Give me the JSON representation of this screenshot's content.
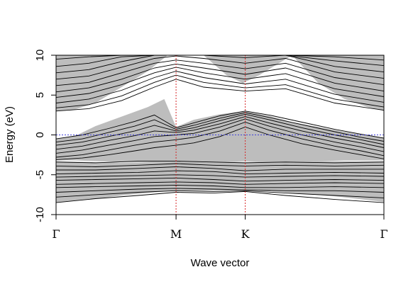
{
  "chart_data": {
    "type": "line",
    "title": "",
    "xlabel": "Wave vector",
    "ylabel": "Energy (eV)",
    "ylim": [
      -10,
      10
    ],
    "yticks": [
      10,
      5,
      0,
      -5,
      -10
    ],
    "ytick_labels": [
      "10",
      "5",
      "0",
      "-5",
      "-10"
    ],
    "kpoints": [
      {
        "label": "Γ",
        "k": 0.0
      },
      {
        "label": "M",
        "k": 0.366
      },
      {
        "label": "K",
        "k": 0.577
      },
      {
        "label": "Γ",
        "k": 1.0
      }
    ],
    "fermi_level": 0,
    "projected_regions": [
      {
        "name": "conduction-continuum",
        "k": [
          0,
          0.05,
          0.12,
          0.2,
          0.28,
          0.34,
          0.45,
          0.52,
          0.57,
          0.62,
          0.72,
          0.8,
          0.88,
          0.95,
          1.0
        ],
        "lower": [
          3.0,
          3.1,
          4.0,
          6.0,
          8.0,
          10.0,
          10.0,
          7.5,
          6.5,
          7.5,
          10.0,
          6.5,
          4.5,
          3.5,
          3.0
        ],
        "upper": [
          10,
          10,
          10,
          10,
          10,
          10,
          10,
          10,
          10,
          10,
          10,
          10,
          10,
          10,
          10
        ]
      },
      {
        "name": "middle-continuum",
        "k": [
          0,
          0.06,
          0.12,
          0.2,
          0.28,
          0.33,
          0.366,
          0.42,
          0.5,
          0.577,
          0.65,
          0.72,
          0.8,
          0.88,
          0.95,
          1.0
        ],
        "lower": [
          -3.2,
          -3.2,
          -3.3,
          -3.4,
          -3.4,
          -3.5,
          -3.5,
          -3.5,
          -3.4,
          -3.3,
          -3.4,
          -3.4,
          -3.3,
          -3.2,
          -3.2,
          -3.2
        ],
        "upper": [
          -0.5,
          -0.1,
          1.1,
          2.3,
          3.5,
          4.5,
          1.0,
          1.9,
          2.6,
          3.0,
          2.4,
          1.6,
          1.0,
          0.4,
          0.0,
          -0.4
        ]
      },
      {
        "name": "valence-continuum",
        "k": [
          0,
          0.1,
          0.2,
          0.3,
          0.366,
          0.45,
          0.577,
          0.7,
          0.85,
          1.0
        ],
        "lower": [
          -8.5,
          -8.1,
          -7.6,
          -7.2,
          -7.0,
          -7.0,
          -6.9,
          -7.2,
          -7.7,
          -8.4
        ],
        "upper": [
          -3.3,
          -3.4,
          -3.5,
          -3.4,
          -3.3,
          -3.3,
          -3.4,
          -3.3,
          -3.3,
          -3.3
        ]
      }
    ],
    "band_series": [
      {
        "k": [
          0,
          0.1,
          0.2,
          0.3,
          0.366,
          0.45,
          0.577,
          0.7,
          0.85,
          1.0
        ],
        "energy": [
          9.5,
          9.8,
          10.0,
          10.0,
          10.0,
          10.0,
          10.0,
          10.0,
          9.8,
          9.4
        ]
      },
      {
        "k": [
          0,
          0.1,
          0.2,
          0.3,
          0.366,
          0.45,
          0.577,
          0.7,
          0.85,
          1.0
        ],
        "energy": [
          8.6,
          9.0,
          9.8,
          10.0,
          10.0,
          10.0,
          10.0,
          10.0,
          9.3,
          8.7
        ]
      },
      {
        "k": [
          0,
          0.1,
          0.2,
          0.3,
          0.366,
          0.45,
          0.577,
          0.7,
          0.85,
          1.0
        ],
        "energy": [
          7.8,
          8.2,
          9.2,
          10.0,
          10.0,
          10.0,
          9.7,
          10.0,
          8.6,
          7.9
        ]
      },
      {
        "k": [
          0,
          0.1,
          0.2,
          0.3,
          0.366,
          0.45,
          0.577,
          0.7,
          0.85,
          1.0
        ],
        "energy": [
          7.0,
          7.4,
          8.5,
          9.6,
          9.9,
          9.6,
          9.0,
          9.6,
          7.9,
          7.1
        ]
      },
      {
        "k": [
          0,
          0.1,
          0.2,
          0.3,
          0.366,
          0.45,
          0.577,
          0.7,
          0.85,
          1.0
        ],
        "energy": [
          6.2,
          6.6,
          7.8,
          9.0,
          9.4,
          9.0,
          8.3,
          9.0,
          7.2,
          6.3
        ]
      },
      {
        "k": [
          0,
          0.1,
          0.2,
          0.3,
          0.366,
          0.45,
          0.577,
          0.7,
          0.85,
          1.0
        ],
        "energy": [
          5.4,
          5.9,
          7.0,
          8.4,
          8.9,
          8.4,
          7.6,
          8.4,
          6.5,
          5.5
        ]
      },
      {
        "k": [
          0,
          0.1,
          0.2,
          0.3,
          0.366,
          0.45,
          0.577,
          0.7,
          0.85,
          1.0
        ],
        "energy": [
          4.7,
          5.2,
          6.3,
          7.8,
          8.5,
          7.8,
          7.0,
          7.7,
          5.8,
          4.8
        ]
      },
      {
        "k": [
          0,
          0.1,
          0.2,
          0.3,
          0.366,
          0.45,
          0.577,
          0.7,
          0.85,
          1.0
        ],
        "energy": [
          4.0,
          4.5,
          5.6,
          7.2,
          8.0,
          7.2,
          6.4,
          7.0,
          5.1,
          4.1
        ]
      },
      {
        "k": [
          0,
          0.1,
          0.2,
          0.3,
          0.366,
          0.45,
          0.577,
          0.7,
          0.85,
          1.0
        ],
        "energy": [
          3.4,
          3.8,
          4.9,
          6.6,
          7.5,
          6.6,
          5.9,
          6.3,
          4.5,
          3.5
        ]
      },
      {
        "k": [
          0,
          0.1,
          0.2,
          0.3,
          0.366,
          0.45,
          0.577,
          0.7,
          0.85,
          1.0
        ],
        "energy": [
          3.0,
          3.3,
          4.3,
          6.0,
          7.0,
          6.0,
          5.5,
          5.8,
          4.0,
          3.1
        ]
      },
      {
        "k": [
          0,
          0.08,
          0.16,
          0.24,
          0.3,
          0.366,
          0.42,
          0.5,
          0.577,
          0.65,
          0.75,
          0.85,
          0.93,
          1.0
        ],
        "energy": [
          -0.5,
          0.0,
          0.8,
          1.7,
          2.5,
          0.9,
          1.5,
          2.4,
          3.0,
          2.5,
          1.6,
          0.7,
          0.1,
          -0.4
        ]
      },
      {
        "k": [
          0,
          0.08,
          0.16,
          0.24,
          0.3,
          0.366,
          0.42,
          0.5,
          0.577,
          0.65,
          0.75,
          0.85,
          0.93,
          1.0
        ],
        "energy": [
          -0.9,
          -0.5,
          0.3,
          1.1,
          1.9,
          0.7,
          1.2,
          2.1,
          2.8,
          2.2,
          1.3,
          0.4,
          -0.3,
          -0.8
        ]
      },
      {
        "k": [
          0,
          0.08,
          0.16,
          0.24,
          0.3,
          0.366,
          0.42,
          0.5,
          0.577,
          0.65,
          0.75,
          0.85,
          0.93,
          1.0
        ],
        "energy": [
          -1.3,
          -0.9,
          -0.2,
          0.5,
          1.2,
          0.5,
          0.9,
          1.8,
          2.6,
          1.9,
          0.9,
          0.0,
          -0.6,
          -1.2
        ]
      },
      {
        "k": [
          0,
          0.08,
          0.16,
          0.24,
          0.3,
          0.366,
          0.42,
          0.5,
          0.577,
          0.65,
          0.75,
          0.85,
          0.93,
          1.0
        ],
        "energy": [
          -1.8,
          -1.4,
          -0.7,
          -0.1,
          0.5,
          0.3,
          0.6,
          1.4,
          2.3,
          1.5,
          0.5,
          -0.4,
          -1.0,
          -1.6
        ]
      },
      {
        "k": [
          0,
          0.08,
          0.16,
          0.24,
          0.3,
          0.366,
          0.42,
          0.5,
          0.577,
          0.65,
          0.75,
          0.85,
          0.93,
          1.0
        ],
        "energy": [
          -2.3,
          -1.9,
          -1.3,
          -0.7,
          -0.2,
          0.0,
          0.2,
          1.0,
          2.0,
          1.1,
          0.0,
          -0.9,
          -1.5,
          -2.1
        ]
      },
      {
        "k": [
          0,
          0.08,
          0.16,
          0.24,
          0.3,
          0.366,
          0.42,
          0.5,
          0.577,
          0.65,
          0.75,
          0.85,
          0.93,
          1.0
        ],
        "energy": [
          -2.8,
          -2.5,
          -1.9,
          -1.3,
          -0.9,
          -0.6,
          -0.3,
          0.5,
          1.6,
          0.6,
          -0.5,
          -1.4,
          -2.0,
          -2.6
        ]
      },
      {
        "k": [
          0,
          0.08,
          0.16,
          0.24,
          0.3,
          0.366,
          0.42,
          0.5,
          0.577,
          0.65,
          0.75,
          0.85,
          0.93,
          1.0
        ],
        "energy": [
          -3.1,
          -2.9,
          -2.5,
          -2.0,
          -1.6,
          -1.3,
          -1.0,
          -0.2,
          1.0,
          0.0,
          -1.1,
          -1.9,
          -2.5,
          -3.0
        ]
      },
      {
        "k": [
          0,
          0.12,
          0.25,
          0.366,
          0.48,
          0.577,
          0.7,
          0.85,
          1.0
        ],
        "energy": [
          -3.4,
          -3.5,
          -3.3,
          -3.3,
          -3.4,
          -3.5,
          -3.4,
          -3.5,
          -3.4
        ]
      },
      {
        "k": [
          0,
          0.12,
          0.25,
          0.366,
          0.48,
          0.577,
          0.7,
          0.85,
          1.0
        ],
        "energy": [
          -3.9,
          -4.0,
          -3.8,
          -3.6,
          -3.8,
          -3.9,
          -3.8,
          -3.9,
          -3.8
        ]
      },
      {
        "k": [
          0,
          0.12,
          0.25,
          0.366,
          0.48,
          0.577,
          0.7,
          0.85,
          1.0
        ],
        "energy": [
          -4.4,
          -4.4,
          -4.2,
          -4.0,
          -4.2,
          -4.5,
          -4.3,
          -4.3,
          -4.3
        ]
      },
      {
        "k": [
          0,
          0.12,
          0.25,
          0.366,
          0.48,
          0.577,
          0.7,
          0.85,
          1.0
        ],
        "energy": [
          -4.9,
          -4.8,
          -4.7,
          -4.5,
          -4.6,
          -4.9,
          -4.8,
          -4.7,
          -4.8
        ]
      },
      {
        "k": [
          0,
          0.12,
          0.25,
          0.366,
          0.48,
          0.577,
          0.7,
          0.85,
          1.0
        ],
        "energy": [
          -5.3,
          -5.2,
          -5.1,
          -5.0,
          -5.1,
          -5.3,
          -5.2,
          -5.1,
          -5.2
        ]
      },
      {
        "k": [
          0,
          0.12,
          0.25,
          0.366,
          0.48,
          0.577,
          0.7,
          0.85,
          1.0
        ],
        "energy": [
          -5.7,
          -5.6,
          -5.5,
          -5.4,
          -5.6,
          -5.8,
          -5.7,
          -5.6,
          -5.7
        ]
      },
      {
        "k": [
          0,
          0.12,
          0.25,
          0.366,
          0.48,
          0.577,
          0.7,
          0.85,
          1.0
        ],
        "energy": [
          -6.2,
          -6.1,
          -6.0,
          -5.9,
          -6.0,
          -6.2,
          -6.1,
          -6.0,
          -6.1
        ]
      },
      {
        "k": [
          0,
          0.12,
          0.25,
          0.366,
          0.48,
          0.577,
          0.7,
          0.85,
          1.0
        ],
        "energy": [
          -6.6,
          -6.5,
          -6.4,
          -6.3,
          -6.4,
          -6.6,
          -6.6,
          -6.5,
          -6.6
        ]
      },
      {
        "k": [
          0,
          0.12,
          0.25,
          0.366,
          0.48,
          0.577,
          0.7,
          0.85,
          1.0
        ],
        "energy": [
          -7.2,
          -7.0,
          -6.8,
          -6.7,
          -6.8,
          -6.9,
          -7.0,
          -7.0,
          -7.2
        ]
      },
      {
        "k": [
          0,
          0.12,
          0.25,
          0.366,
          0.48,
          0.577,
          0.7,
          0.85,
          1.0
        ],
        "energy": [
          -7.8,
          -7.5,
          -7.2,
          -7.0,
          -7.1,
          -7.0,
          -7.3,
          -7.6,
          -7.9
        ]
      },
      {
        "k": [
          0,
          0.12,
          0.25,
          0.366,
          0.48,
          0.577,
          0.7,
          0.85,
          1.0
        ],
        "energy": [
          -8.5,
          -8.0,
          -7.6,
          -7.2,
          -7.3,
          -7.1,
          -7.6,
          -8.1,
          -8.5
        ]
      }
    ],
    "colors": {
      "band_line": "#000000",
      "projected_fill": "#bdbdbd",
      "kpoint_line": "#d62728",
      "fermi_line": "#3f3fd9"
    },
    "grid": false,
    "legend": "none"
  }
}
